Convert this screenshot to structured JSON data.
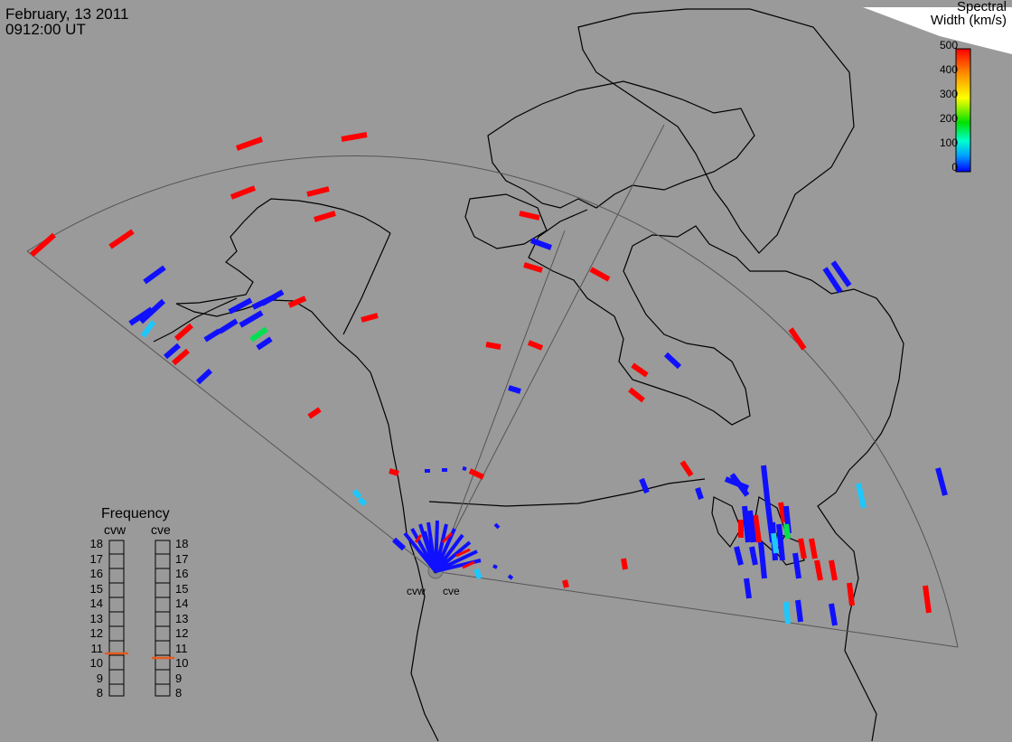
{
  "header": {
    "date": "February, 13 2011",
    "time": "0912:00 UT"
  },
  "colorbar": {
    "title_line1": "Spectral",
    "title_line2": "Width (km/s)",
    "ticks": [
      "500",
      "400",
      "300",
      "200",
      "100",
      "0"
    ],
    "colors": [
      "#ff0000",
      "#ff8c00",
      "#ffff00",
      "#00e000",
      "#00ffd0",
      "#00a0ff",
      "#0000ff"
    ]
  },
  "frequency_panel": {
    "title": "Frequency",
    "radars": [
      {
        "name": "cvw",
        "value_mhz": 10.9,
        "marker_color": "#e65a1e"
      },
      {
        "name": "cve",
        "value_mhz": 10.5,
        "marker_color": "#e65a1e"
      }
    ],
    "scale": [
      "18",
      "17",
      "16",
      "15",
      "14",
      "13",
      "12",
      "11",
      "10",
      "9",
      "8"
    ]
  },
  "site_labels": [
    "cvw",
    "cve"
  ],
  "colors": {
    "background": "#9a9a9a",
    "coast": "#000000",
    "fov": "#555555",
    "high_width": "#ff0000",
    "low_width": "#1010ff",
    "mid_width": "#1ec8ff"
  }
}
